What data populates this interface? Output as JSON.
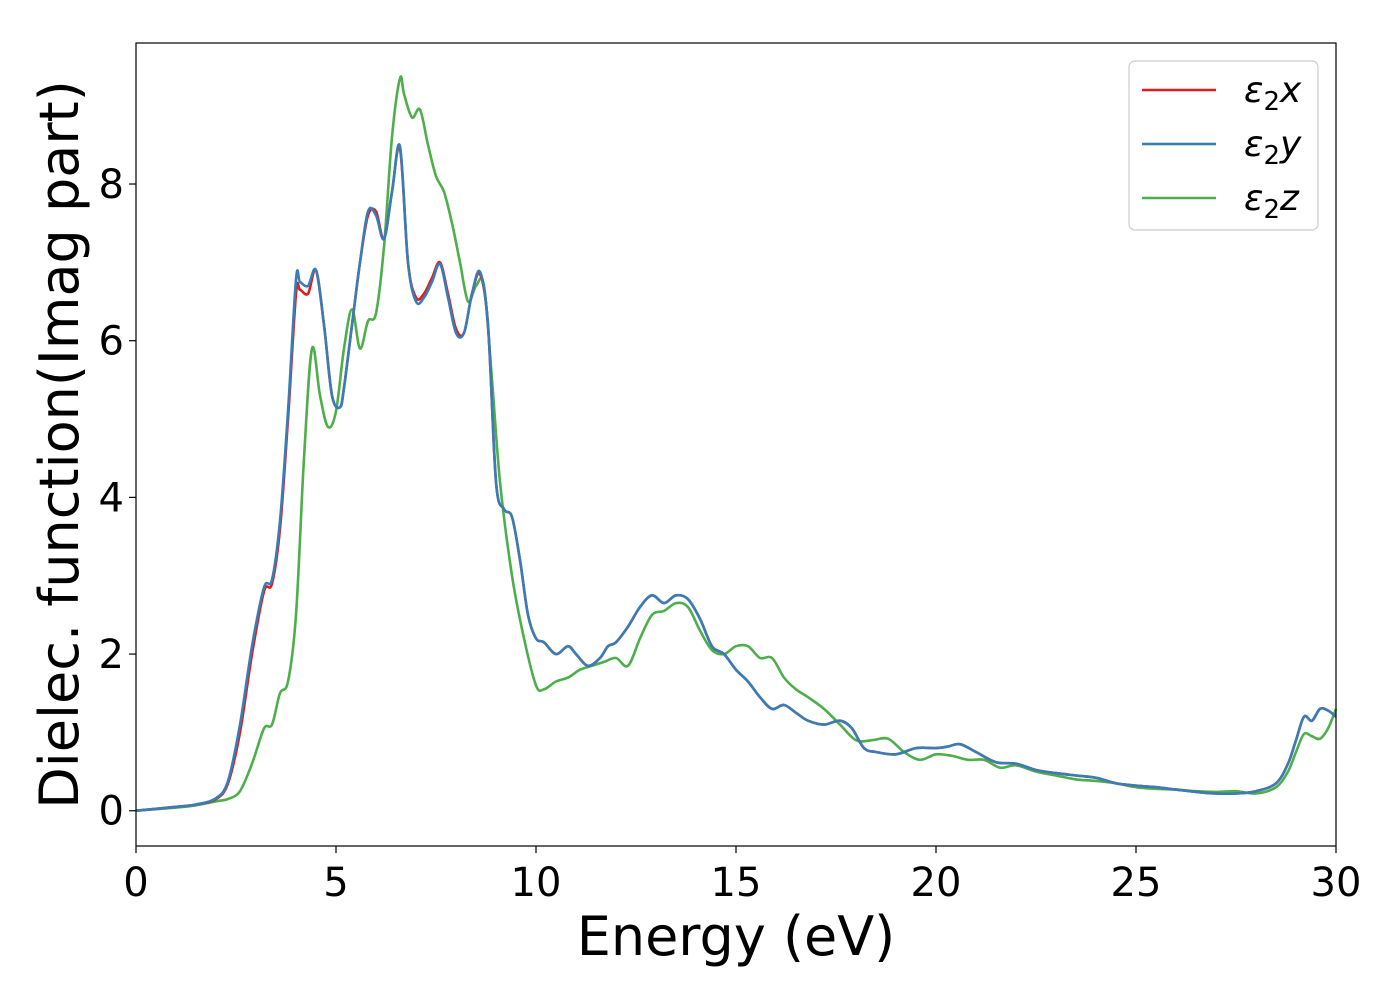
{
  "chart_data": {
    "type": "line",
    "title": "",
    "xlabel": "Energy (eV)",
    "ylabel": "Dielec. function(Imag part)",
    "xlim": [
      0,
      30
    ],
    "ylim": [
      -0.45,
      9.8
    ],
    "xticks": [
      0,
      5,
      10,
      15,
      20,
      25,
      30
    ],
    "yticks": [
      0,
      2,
      4,
      6,
      8
    ],
    "grid": false,
    "legend_position": "top-right",
    "series": [
      {
        "name": "ε2x",
        "legend_base": "ε",
        "legend_sub": "2",
        "legend_var": "x",
        "color": "#e41a1c",
        "x": [
          0,
          1,
          1.5,
          2,
          2.3,
          2.6,
          2.9,
          3.2,
          3.4,
          3.6,
          3.8,
          4.0,
          4.1,
          4.3,
          4.5,
          4.7,
          4.9,
          5.1,
          5.2,
          5.4,
          5.6,
          5.8,
          6.0,
          6.2,
          6.4,
          6.6,
          6.8,
          7.0,
          7.2,
          7.4,
          7.6,
          7.8,
          8.0,
          8.2,
          8.4,
          8.6,
          8.8,
          9.0,
          9.2,
          9.4,
          9.6,
          9.8,
          10.0,
          10.2,
          10.5,
          10.8,
          11.0,
          11.3,
          11.6,
          11.8,
          12.0,
          12.3,
          12.6,
          12.9,
          13.2,
          13.5,
          13.8,
          14.1,
          14.4,
          14.7,
          15.0,
          15.3,
          15.6,
          15.9,
          16.2,
          16.5,
          16.8,
          17.2,
          17.6,
          17.9,
          18.2,
          18.5,
          19.0,
          19.5,
          20.0,
          20.3,
          20.6,
          21.0,
          21.5,
          22.0,
          22.5,
          23.0,
          23.5,
          24.0,
          24.5,
          25.0,
          25.5,
          26.0,
          26.5,
          27.0,
          27.5,
          28.0,
          28.5,
          28.8,
          29.0,
          29.2,
          29.4,
          29.6,
          29.8,
          30.0
        ],
        "values": [
          0.0,
          0.05,
          0.08,
          0.15,
          0.35,
          1.0,
          2.0,
          2.8,
          2.9,
          3.6,
          5.0,
          6.6,
          6.65,
          6.6,
          6.9,
          6.2,
          5.3,
          5.15,
          5.4,
          6.2,
          7.0,
          7.6,
          7.65,
          7.3,
          7.9,
          8.45,
          7.0,
          6.55,
          6.6,
          6.8,
          7.0,
          6.6,
          6.15,
          6.1,
          6.6,
          6.85,
          6.2,
          4.2,
          3.85,
          3.75,
          3.2,
          2.5,
          2.2,
          2.15,
          2.0,
          2.1,
          2.0,
          1.85,
          1.95,
          2.1,
          2.15,
          2.35,
          2.6,
          2.75,
          2.65,
          2.75,
          2.7,
          2.45,
          2.1,
          2.0,
          1.8,
          1.65,
          1.45,
          1.3,
          1.35,
          1.25,
          1.15,
          1.1,
          1.15,
          1.05,
          0.8,
          0.75,
          0.72,
          0.8,
          0.8,
          0.82,
          0.85,
          0.75,
          0.62,
          0.6,
          0.52,
          0.48,
          0.45,
          0.42,
          0.35,
          0.32,
          0.3,
          0.27,
          0.24,
          0.22,
          0.22,
          0.25,
          0.35,
          0.6,
          0.9,
          1.2,
          1.15,
          1.3,
          1.28,
          1.2
        ]
      },
      {
        "name": "ε2y",
        "legend_base": "ε",
        "legend_sub": "2",
        "legend_var": "y",
        "color": "#377eb8",
        "x": [
          0,
          1,
          1.5,
          2,
          2.3,
          2.6,
          2.9,
          3.2,
          3.4,
          3.6,
          3.8,
          4.0,
          4.1,
          4.3,
          4.5,
          4.7,
          4.9,
          5.1,
          5.2,
          5.4,
          5.6,
          5.8,
          6.0,
          6.2,
          6.4,
          6.6,
          6.8,
          7.0,
          7.2,
          7.4,
          7.6,
          7.8,
          8.0,
          8.2,
          8.4,
          8.6,
          8.8,
          9.0,
          9.2,
          9.4,
          9.6,
          9.8,
          10.0,
          10.2,
          10.5,
          10.8,
          11.0,
          11.3,
          11.6,
          11.8,
          12.0,
          12.3,
          12.6,
          12.9,
          13.2,
          13.5,
          13.8,
          14.1,
          14.4,
          14.7,
          15.0,
          15.3,
          15.6,
          15.9,
          16.2,
          16.5,
          16.8,
          17.2,
          17.6,
          17.9,
          18.2,
          18.5,
          19.0,
          19.5,
          20.0,
          20.3,
          20.6,
          21.0,
          21.5,
          22.0,
          22.5,
          23.0,
          23.5,
          24.0,
          24.5,
          25.0,
          25.5,
          26.0,
          26.5,
          27.0,
          27.5,
          28.0,
          28.5,
          28.8,
          29.0,
          29.2,
          29.4,
          29.6,
          29.8,
          30.0
        ],
        "values": [
          0.0,
          0.05,
          0.08,
          0.16,
          0.38,
          1.1,
          2.1,
          2.85,
          2.95,
          3.7,
          5.1,
          6.78,
          6.75,
          6.7,
          6.9,
          6.2,
          5.3,
          5.15,
          5.4,
          6.2,
          7.0,
          7.65,
          7.6,
          7.3,
          7.9,
          8.48,
          7.0,
          6.5,
          6.55,
          6.75,
          6.98,
          6.55,
          6.1,
          6.1,
          6.6,
          6.88,
          6.2,
          4.2,
          3.85,
          3.75,
          3.2,
          2.5,
          2.2,
          2.15,
          2.0,
          2.1,
          2.0,
          1.85,
          1.95,
          2.1,
          2.15,
          2.35,
          2.6,
          2.75,
          2.65,
          2.75,
          2.7,
          2.45,
          2.1,
          2.0,
          1.8,
          1.65,
          1.45,
          1.3,
          1.35,
          1.25,
          1.15,
          1.1,
          1.15,
          1.05,
          0.8,
          0.75,
          0.72,
          0.8,
          0.8,
          0.82,
          0.85,
          0.75,
          0.62,
          0.6,
          0.52,
          0.48,
          0.45,
          0.42,
          0.35,
          0.32,
          0.3,
          0.27,
          0.24,
          0.22,
          0.22,
          0.25,
          0.35,
          0.6,
          0.9,
          1.2,
          1.15,
          1.3,
          1.28,
          1.2
        ]
      },
      {
        "name": "ε2z",
        "legend_base": "ε",
        "legend_sub": "2",
        "legend_var": "z",
        "color": "#4daf4a",
        "x": [
          0,
          1,
          1.5,
          2,
          2.3,
          2.6,
          2.9,
          3.2,
          3.4,
          3.6,
          3.8,
          4.0,
          4.2,
          4.4,
          4.6,
          4.8,
          5.0,
          5.2,
          5.4,
          5.6,
          5.8,
          6.0,
          6.2,
          6.4,
          6.6,
          6.7,
          6.9,
          7.1,
          7.3,
          7.5,
          7.7,
          7.9,
          8.1,
          8.3,
          8.5,
          8.7,
          8.9,
          9.1,
          9.4,
          9.7,
          10.0,
          10.2,
          10.5,
          10.8,
          11.1,
          11.4,
          11.7,
          12.0,
          12.3,
          12.6,
          12.9,
          13.2,
          13.5,
          13.8,
          14.1,
          14.4,
          14.7,
          15.0,
          15.3,
          15.6,
          15.9,
          16.2,
          16.5,
          16.8,
          17.2,
          17.6,
          18.0,
          18.4,
          18.8,
          19.2,
          19.6,
          20.0,
          20.4,
          20.8,
          21.2,
          21.6,
          22.0,
          22.5,
          23.0,
          23.5,
          24.0,
          24.5,
          25.0,
          25.5,
          26.0,
          26.5,
          27.0,
          27.5,
          28.0,
          28.5,
          28.8,
          29.0,
          29.2,
          29.4,
          29.6,
          29.8,
          30.0
        ],
        "values": [
          0.0,
          0.04,
          0.07,
          0.12,
          0.15,
          0.25,
          0.6,
          1.05,
          1.1,
          1.5,
          1.65,
          2.5,
          4.5,
          5.9,
          5.3,
          4.9,
          5.1,
          5.9,
          6.4,
          5.9,
          6.25,
          6.35,
          7.2,
          8.6,
          9.35,
          9.15,
          8.85,
          8.95,
          8.5,
          8.1,
          7.9,
          7.5,
          7.0,
          6.5,
          6.7,
          6.7,
          5.5,
          4.2,
          3.0,
          2.2,
          1.6,
          1.55,
          1.65,
          1.7,
          1.8,
          1.85,
          1.9,
          1.95,
          1.85,
          2.2,
          2.5,
          2.55,
          2.65,
          2.6,
          2.3,
          2.05,
          2.0,
          2.1,
          2.1,
          1.95,
          1.95,
          1.7,
          1.55,
          1.45,
          1.3,
          1.1,
          0.9,
          0.9,
          0.92,
          0.75,
          0.65,
          0.72,
          0.7,
          0.65,
          0.65,
          0.55,
          0.58,
          0.5,
          0.45,
          0.4,
          0.38,
          0.35,
          0.3,
          0.28,
          0.27,
          0.25,
          0.24,
          0.25,
          0.22,
          0.3,
          0.5,
          0.75,
          0.98,
          0.95,
          0.92,
          1.05,
          1.3
        ]
      }
    ]
  }
}
